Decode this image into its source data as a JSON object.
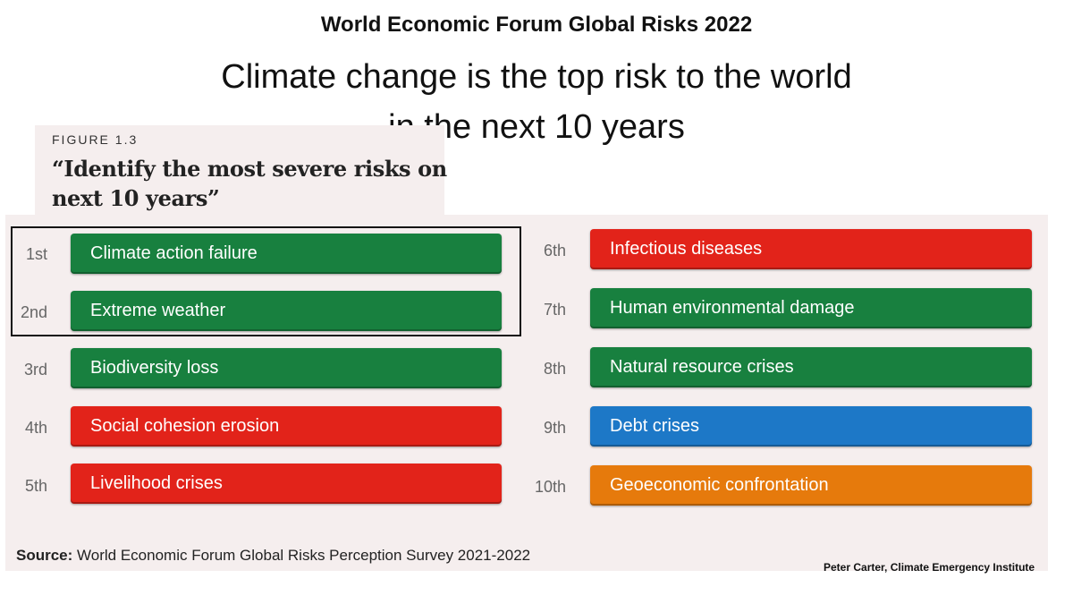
{
  "title": "World Economic Forum Global Risks 2022",
  "subtitle_line1": "Climate change is the top risk to the world",
  "subtitle_line2": "in the next 10 years",
  "figure_label": "FIGURE 1.3",
  "question_line1": "“Identify the most severe risks on",
  "question_line2": "next 10 years”",
  "risks": [
    {
      "rank": "1st",
      "label": "Climate action failure",
      "color": "#18803f"
    },
    {
      "rank": "2nd",
      "label": "Extreme weather",
      "color": "#18803f"
    },
    {
      "rank": "3rd",
      "label": "Biodiversity loss",
      "color": "#18803f"
    },
    {
      "rank": "4th",
      "label": "Social cohesion erosion",
      "color": "#e2231a"
    },
    {
      "rank": "5th",
      "label": "Livelihood crises",
      "color": "#e2231a"
    },
    {
      "rank": "6th",
      "label": "Infectious diseases",
      "color": "#e2231a"
    },
    {
      "rank": "7th",
      "label": "Human environmental damage",
      "color": "#18803f"
    },
    {
      "rank": "8th",
      "label": "Natural resource crises",
      "color": "#18803f"
    },
    {
      "rank": "9th",
      "label": "Debt crises",
      "color": "#1d78c7"
    },
    {
      "rank": "10th",
      "label": "Geoeconomic confrontation",
      "color": "#e67a0c"
    }
  ],
  "source_label": "Source:",
  "source_text": " World Economic Forum Global Risks Perception Survey 2021-2022",
  "credit": "Peter Carter, Climate Emergency Institute"
}
